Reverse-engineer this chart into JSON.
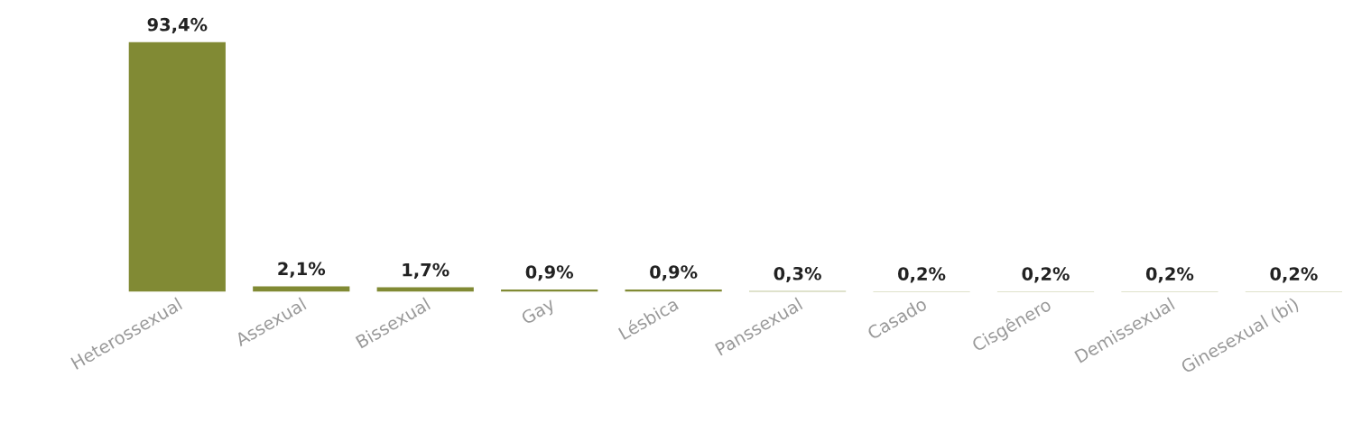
{
  "chart_data": {
    "type": "bar",
    "categories": [
      "Heterossexual",
      "Assexual",
      "Bissexual",
      "Gay",
      "Lésbica",
      "Panssexual",
      "Casado",
      "Cisgênero",
      "Demissexual",
      "Ginesexual (bi)"
    ],
    "values": [
      93.4,
      2.1,
      1.7,
      0.9,
      0.9,
      0.3,
      0.2,
      0.2,
      0.2,
      0.2
    ],
    "value_labels": [
      "93,4%",
      "2,1%",
      "1,7%",
      "0,9%",
      "0,9%",
      "0,3%",
      "0,2%",
      "0,2%",
      "0,2%",
      "0,2%"
    ],
    "color": "#818a34",
    "grid": false
  }
}
